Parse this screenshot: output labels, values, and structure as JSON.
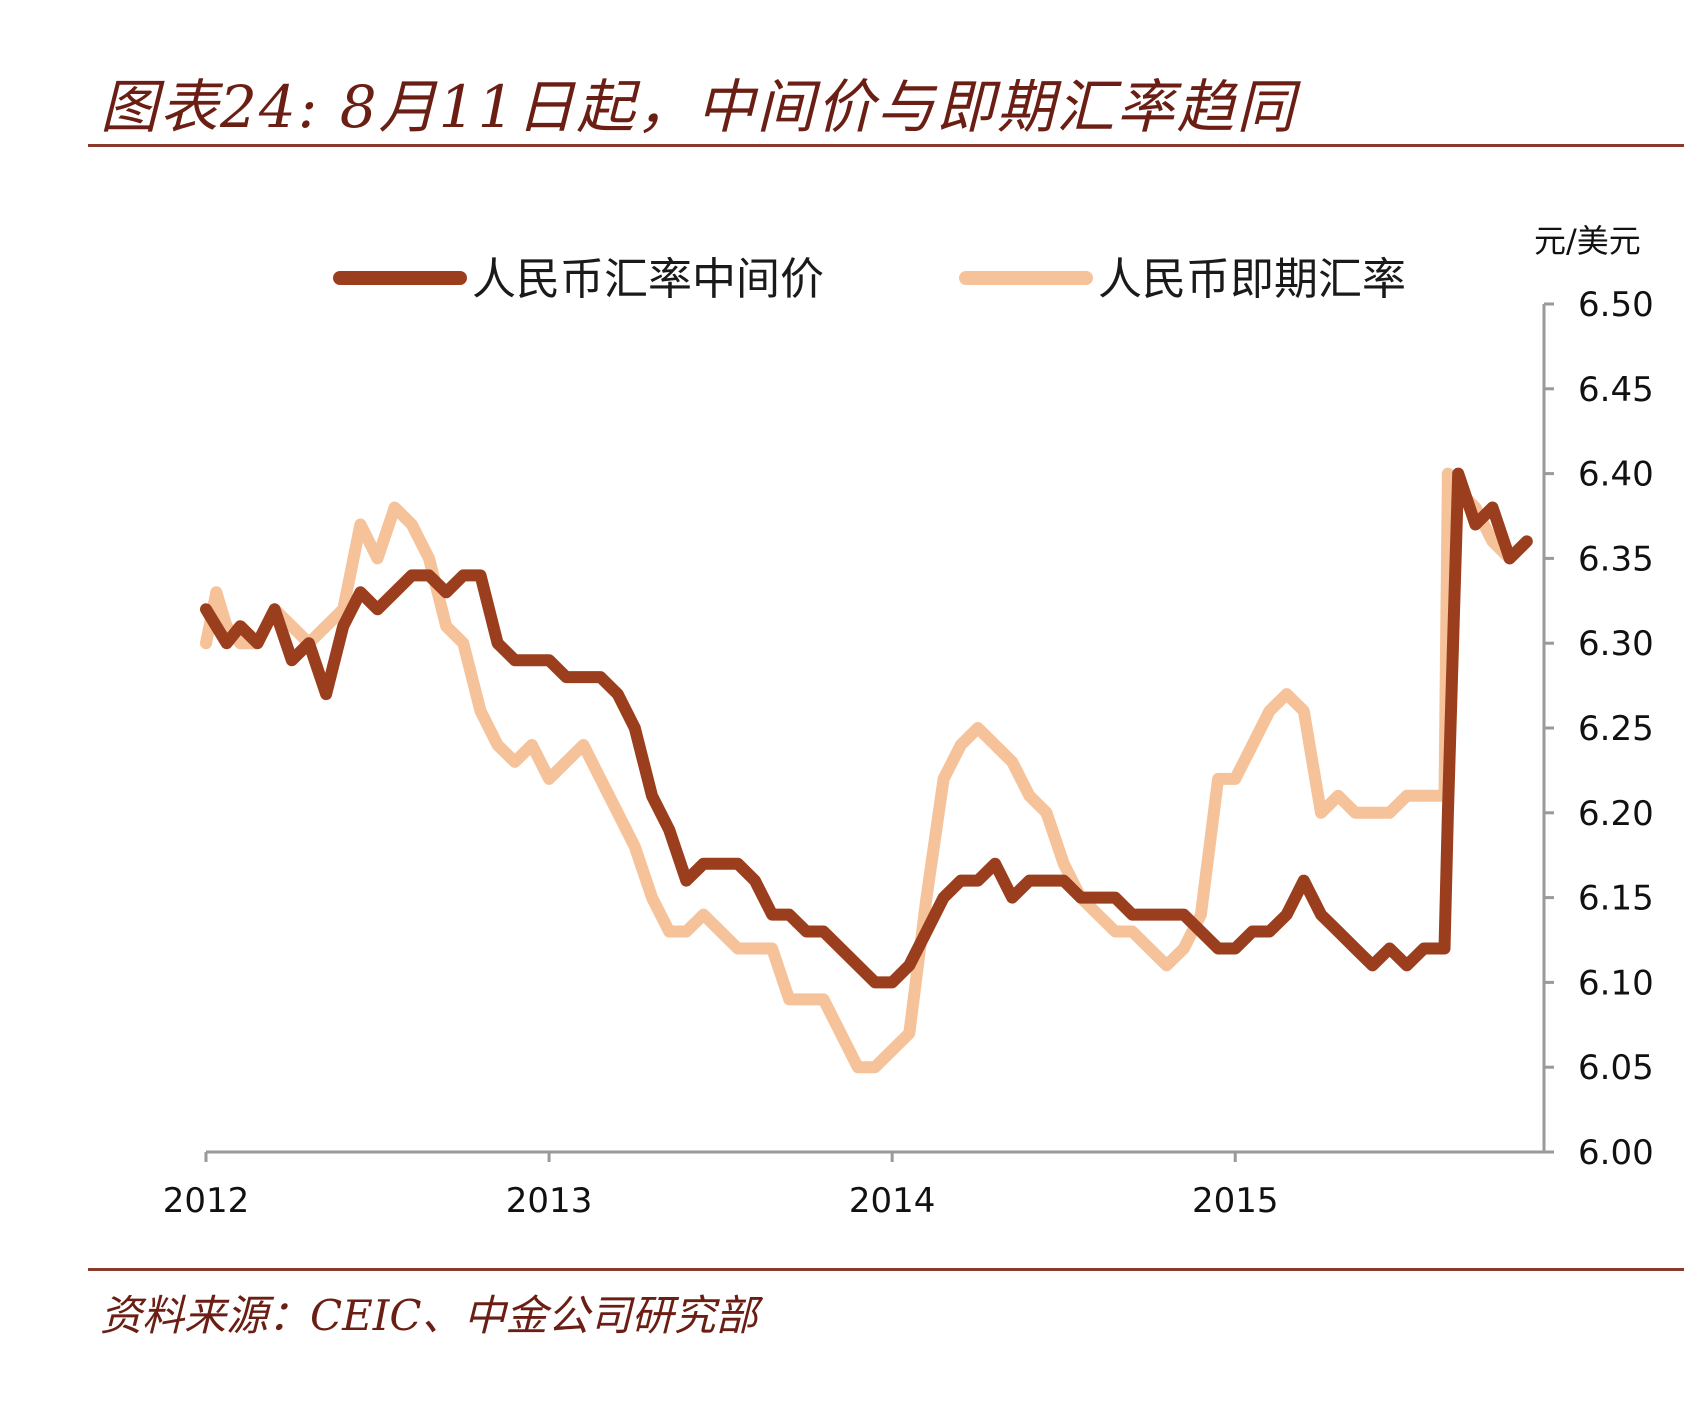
{
  "title": "图表24: 8月11日起，中间价与即期汇率趋同",
  "source": "资料来源：CEIC、中金公司研究部",
  "colors": {
    "central": "#9a3e1e",
    "spot": "#f6c29a",
    "axis": "#9a9a9a",
    "rule": "#8a3a2c"
  },
  "chart_data": {
    "type": "line",
    "title": "图表24: 8月11日起，中间价与即期汇率趋同",
    "ylabel": "元/美元",
    "xlabel": "",
    "ylim": [
      6.0,
      6.5
    ],
    "y_ticks": [
      "6.50",
      "6.45",
      "6.40",
      "6.35",
      "6.30",
      "6.25",
      "6.20",
      "6.15",
      "6.10",
      "6.05",
      "6.00"
    ],
    "xlim": [
      2012.0,
      2015.9
    ],
    "x_ticks": [
      "2012",
      "2013",
      "2014",
      "2015"
    ],
    "y_axis_position": "right",
    "legend_position": "top",
    "series": [
      {
        "name": "人民币汇率中间价",
        "x": [
          2012.0,
          2012.03,
          2012.06,
          2012.1,
          2012.15,
          2012.2,
          2012.25,
          2012.3,
          2012.35,
          2012.4,
          2012.45,
          2012.5,
          2012.55,
          2012.6,
          2012.65,
          2012.7,
          2012.75,
          2012.8,
          2012.85,
          2012.9,
          2012.95,
          2013.0,
          2013.05,
          2013.1,
          2013.15,
          2013.2,
          2013.25,
          2013.3,
          2013.35,
          2013.4,
          2013.45,
          2013.5,
          2013.55,
          2013.6,
          2013.65,
          2013.7,
          2013.75,
          2013.8,
          2013.85,
          2013.9,
          2013.95,
          2014.0,
          2014.05,
          2014.1,
          2014.15,
          2014.2,
          2014.25,
          2014.3,
          2014.35,
          2014.4,
          2014.45,
          2014.5,
          2014.55,
          2014.6,
          2014.65,
          2014.7,
          2014.75,
          2014.8,
          2014.85,
          2014.9,
          2014.95,
          2015.0,
          2015.05,
          2015.1,
          2015.15,
          2015.2,
          2015.25,
          2015.3,
          2015.35,
          2015.4,
          2015.45,
          2015.5,
          2015.55,
          2015.6,
          2015.61,
          2015.62,
          2015.65,
          2015.7,
          2015.75,
          2015.8,
          2015.85
        ],
        "values": [
          6.32,
          6.31,
          6.3,
          6.31,
          6.3,
          6.32,
          6.29,
          6.3,
          6.27,
          6.31,
          6.33,
          6.32,
          6.33,
          6.34,
          6.34,
          6.33,
          6.34,
          6.34,
          6.3,
          6.29,
          6.29,
          6.29,
          6.28,
          6.28,
          6.28,
          6.27,
          6.25,
          6.21,
          6.19,
          6.16,
          6.17,
          6.17,
          6.17,
          6.16,
          6.14,
          6.14,
          6.13,
          6.13,
          6.12,
          6.11,
          6.1,
          6.1,
          6.11,
          6.13,
          6.15,
          6.16,
          6.16,
          6.17,
          6.15,
          6.16,
          6.16,
          6.16,
          6.15,
          6.15,
          6.15,
          6.14,
          6.14,
          6.14,
          6.14,
          6.13,
          6.12,
          6.12,
          6.13,
          6.13,
          6.14,
          6.16,
          6.14,
          6.13,
          6.12,
          6.11,
          6.12,
          6.11,
          6.12,
          6.12,
          6.12,
          6.2,
          6.4,
          6.37,
          6.38,
          6.35,
          6.36
        ]
      },
      {
        "name": "人民币即期汇率",
        "x": [
          2012.0,
          2012.03,
          2012.06,
          2012.1,
          2012.15,
          2012.2,
          2012.25,
          2012.3,
          2012.35,
          2012.4,
          2012.45,
          2012.5,
          2012.55,
          2012.6,
          2012.65,
          2012.7,
          2012.75,
          2012.8,
          2012.85,
          2012.9,
          2012.95,
          2013.0,
          2013.05,
          2013.1,
          2013.15,
          2013.2,
          2013.25,
          2013.3,
          2013.35,
          2013.4,
          2013.45,
          2013.5,
          2013.55,
          2013.6,
          2013.65,
          2013.7,
          2013.75,
          2013.8,
          2013.85,
          2013.9,
          2013.95,
          2014.0,
          2014.05,
          2014.1,
          2014.15,
          2014.2,
          2014.25,
          2014.3,
          2014.35,
          2014.4,
          2014.45,
          2014.5,
          2014.55,
          2014.6,
          2014.65,
          2014.7,
          2014.75,
          2014.8,
          2014.85,
          2014.9,
          2014.95,
          2015.0,
          2015.05,
          2015.1,
          2015.15,
          2015.2,
          2015.25,
          2015.3,
          2015.35,
          2015.4,
          2015.45,
          2015.5,
          2015.55,
          2015.6,
          2015.61,
          2015.62,
          2015.65,
          2015.7,
          2015.75,
          2015.8,
          2015.85
        ],
        "values": [
          6.3,
          6.33,
          6.31,
          6.3,
          6.3,
          6.32,
          6.31,
          6.3,
          6.31,
          6.32,
          6.37,
          6.35,
          6.38,
          6.37,
          6.35,
          6.31,
          6.3,
          6.26,
          6.24,
          6.23,
          6.24,
          6.22,
          6.23,
          6.24,
          6.22,
          6.2,
          6.18,
          6.15,
          6.13,
          6.13,
          6.14,
          6.13,
          6.12,
          6.12,
          6.12,
          6.09,
          6.09,
          6.09,
          6.07,
          6.05,
          6.05,
          6.06,
          6.07,
          6.15,
          6.22,
          6.24,
          6.25,
          6.24,
          6.23,
          6.21,
          6.2,
          6.17,
          6.15,
          6.14,
          6.13,
          6.13,
          6.12,
          6.11,
          6.12,
          6.14,
          6.22,
          6.22,
          6.24,
          6.26,
          6.27,
          6.26,
          6.2,
          6.21,
          6.2,
          6.2,
          6.2,
          6.21,
          6.21,
          6.21,
          6.21,
          6.4,
          6.39,
          6.38,
          6.36,
          6.35,
          6.36
        ]
      }
    ]
  }
}
